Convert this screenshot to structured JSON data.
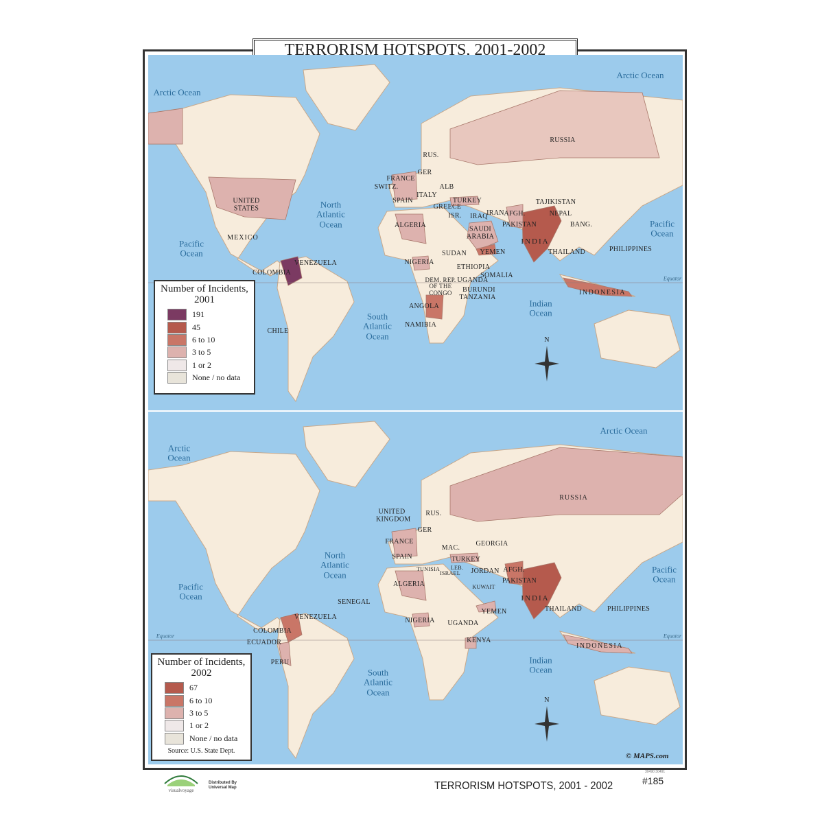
{
  "title": "TERRORISM HOTSPOTS, 2001-2002",
  "footer": {
    "title": "TERRORISM HOTSPOTS, 2001 - 2002",
    "number": "#185",
    "tiny_codes": "30490  30491",
    "distributed": "Distributed By",
    "distributor": "Universal Map",
    "logo_text": "visualvoyage",
    "copyright": "© MAPS.com"
  },
  "colors": {
    "ocean": "#9ccbec",
    "land": "#f7ecdc",
    "c191": "#7b3a62",
    "c45": "#b55a4d",
    "c67": "#b55a4d",
    "c6to10": "#c97667",
    "c3to5": "#ddb2ae",
    "c1or2": "#efe8e8",
    "none": "#e8e4da"
  },
  "map2001": {
    "legend": {
      "title": "Number of Incidents, 2001",
      "items": [
        {
          "label": "191",
          "color": "#7b3a62"
        },
        {
          "label": "45",
          "color": "#b55a4d"
        },
        {
          "label": "6 to 10",
          "color": "#c97667"
        },
        {
          "label": "3 to 5",
          "color": "#ddb2ae"
        },
        {
          "label": "1 or 2",
          "color": "#efe8e8"
        },
        {
          "label": "None / no data",
          "color": "#e8e4da"
        }
      ]
    },
    "oceans": [
      "Arctic Ocean",
      "Arctic Ocean",
      "North Atlantic Ocean",
      "Pacific Ocean",
      "Pacific Ocean",
      "South Atlantic Ocean",
      "Indian Ocean"
    ],
    "equator": "Equator",
    "north": "N",
    "countries": [
      "RUSSIA",
      "RUS.",
      "GER",
      "FRANCE",
      "SWITZ.",
      "ALB",
      "ITALY",
      "SPAIN",
      "GREECE",
      "TURKEY",
      "ISR.",
      "IRAQ",
      "IRAN",
      "AFGH.",
      "TAJIKISTAN",
      "NEPAL",
      "PAKISTAN",
      "BANG.",
      "INDIA",
      "ALGERIA",
      "SAUDI ARABIA",
      "YEMEN",
      "THAILAND",
      "PHILIPPINES",
      "SUDAN",
      "NIGERIA",
      "ETHIOPIA",
      "SOMALIA",
      "DEM. REP. OF THE CONGO",
      "UGANDA",
      "BURUNDI",
      "TANZANIA",
      "ANGOLA",
      "NAMIBIA",
      "INDONESIA",
      "UNITED STATES",
      "MEXICO",
      "VENEZUELA",
      "COLOMBIA",
      "CHILE"
    ]
  },
  "map2002": {
    "legend": {
      "title": "Number of Incidents, 2002",
      "items": [
        {
          "label": "67",
          "color": "#b55a4d"
        },
        {
          "label": "6 to 10",
          "color": "#c97667"
        },
        {
          "label": "3 to 5",
          "color": "#ddb2ae"
        },
        {
          "label": "1 or 2",
          "color": "#efe8e8"
        },
        {
          "label": "None / no data",
          "color": "#e8e4da"
        }
      ],
      "source": "Source: U.S. State Dept."
    },
    "oceans": [
      "Arctic Ocean",
      "Arctic Ocean",
      "North Atlantic Ocean",
      "Pacific Ocean",
      "Pacific Ocean",
      "South Atlantic Ocean",
      "Indian Ocean"
    ],
    "equator": "Equator",
    "north": "N",
    "countries": [
      "RUSSIA",
      "UNITED KINGDOM",
      "RUS.",
      "GER",
      "FRANCE",
      "SPAIN",
      "MAC.",
      "GEORGIA",
      "TURKEY",
      "TUNISIA",
      "LEB.",
      "ISRAEL",
      "JORDAN",
      "AFGH.",
      "PAKISTAN",
      "KUWAIT",
      "INDIA",
      "THAILAND",
      "PHILIPPINES",
      "ALGERIA",
      "SENEGAL",
      "YEMEN",
      "NIGERIA",
      "UGANDA",
      "KENYA",
      "INDONESIA",
      "VENEZUELA",
      "COLOMBIA",
      "ECUADOR",
      "PERU"
    ]
  }
}
